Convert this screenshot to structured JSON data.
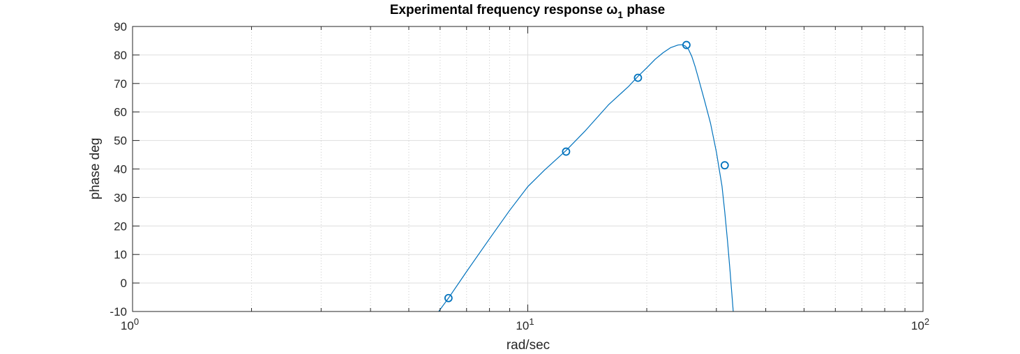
{
  "chart_data": {
    "type": "line",
    "title": "Experimental frequency response ω",
    "title_subscript": "1",
    "title_suffix": " phase",
    "xlabel": "rad/sec",
    "ylabel": "phase deg",
    "xscale": "log",
    "xlim": [
      1,
      100
    ],
    "ylim": [
      -10,
      90
    ],
    "grid": true,
    "minor_grid_x": true,
    "x_ticks": [
      {
        "base": "10",
        "exp": "0",
        "value": 1
      },
      {
        "base": "10",
        "exp": "1",
        "value": 10
      },
      {
        "base": "10",
        "exp": "2",
        "value": 100
      }
    ],
    "y_ticks": [
      -10,
      0,
      10,
      20,
      30,
      40,
      50,
      60,
      70,
      80,
      90
    ],
    "series": [
      {
        "style": "line",
        "color": "#0072BD",
        "x": [
          5.95,
          6.3,
          7,
          8,
          9,
          10,
          11,
          12.5,
          14,
          16,
          18,
          19,
          20,
          21,
          22,
          23,
          24,
          24.5,
          25,
          25.5,
          26,
          26.5,
          27,
          28,
          29,
          30,
          31,
          31.5,
          32,
          32.5,
          33.1
        ],
        "y": [
          -10,
          -5.3,
          4,
          15.5,
          25.5,
          33.8,
          39.5,
          46.5,
          53.5,
          62.5,
          69,
          72.5,
          75.5,
          78.5,
          80.8,
          82.6,
          83.5,
          83.6,
          83.2,
          82,
          79.5,
          76,
          72,
          64,
          56,
          46,
          34,
          25,
          15,
          4,
          -10
        ]
      },
      {
        "style": "markers",
        "marker": "circle",
        "color": "#0072BD",
        "x": [
          6.3,
          12.5,
          19,
          25.2,
          31.5
        ],
        "y": [
          -5.3,
          46.1,
          72,
          83.5,
          41.3
        ]
      }
    ]
  }
}
